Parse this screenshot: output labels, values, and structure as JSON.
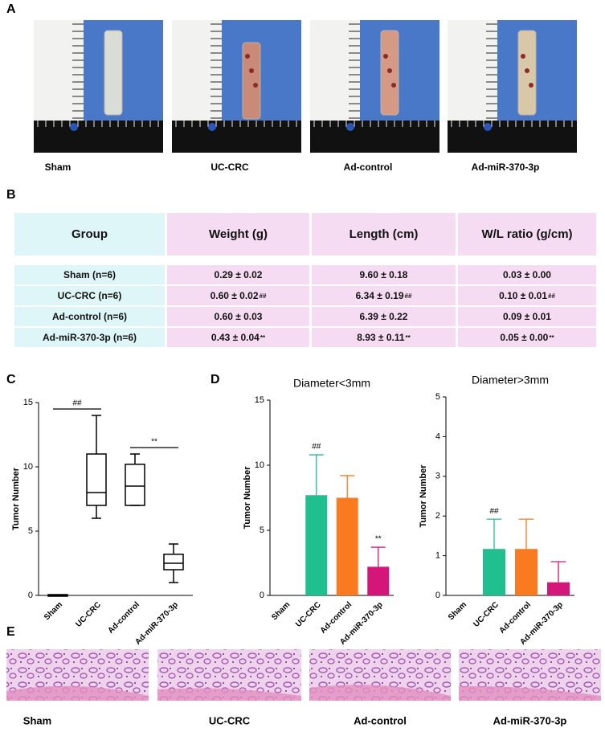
{
  "panel_labels": [
    "A",
    "B",
    "C",
    "D",
    "E"
  ],
  "panel_a": {
    "captions": [
      "Sham",
      "UC-CRC",
      "Ad-control",
      "Ad-miR-370-3p"
    ]
  },
  "table": {
    "header": [
      "Group",
      "Weight (g)",
      "Length (cm)",
      "W/L ratio (g/cm)"
    ],
    "rows": [
      [
        "Sham (n=6)",
        "0.29 ± 0.02",
        "9.60 ± 0.18",
        "0.03 ± 0.00"
      ],
      [
        "UC-CRC (n=6)",
        {
          "text": "0.60 ± 0.02",
          "sup": "##"
        },
        {
          "text": "6.34 ± 0.19",
          "sup": "##"
        },
        {
          "text": "0.10 ± 0.01",
          "sup": "##"
        }
      ],
      [
        "Ad-control (n=6)",
        "0.60 ± 0.03",
        "6.39 ± 0.22",
        "0.09 ± 0.01"
      ],
      [
        "Ad-miR-370-3p (n=6)",
        {
          "text": "0.43 ± 0.04",
          "sup": "**"
        },
        {
          "text": "8.93 ± 0.11",
          "sup": "**"
        },
        {
          "text": "0.05 ± 0.00",
          "sup": "**"
        }
      ]
    ]
  },
  "chart_data": [
    {
      "type": "box",
      "y_label": "Tumor Number",
      "categories": [
        "Sham",
        "UC-CRC",
        "Ad-control",
        "Ad-miR-370-3p"
      ],
      "stats": {
        "min": [
          0,
          6,
          7,
          1
        ],
        "q1": [
          0,
          7,
          7,
          2
        ],
        "median": [
          0,
          8,
          8.5,
          2.5
        ],
        "q3": [
          0,
          11,
          10.2,
          3.2
        ],
        "max": [
          0,
          14,
          11,
          4
        ]
      },
      "color": "#000000",
      "annotations": [
        {
          "text": "##",
          "from": "Sham",
          "to": "UC-CRC"
        },
        {
          "text": "**",
          "from": "Ad-control",
          "to": "Ad-miR-370-3p"
        }
      ],
      "ylim": [
        0,
        15
      ],
      "yticks": [
        0,
        5,
        10,
        15
      ]
    },
    {
      "type": "bar",
      "title": "Diameter<3mm",
      "y_label": "Tumor Number",
      "categories": [
        "Sham",
        "UC-CRC",
        "Ad-control",
        "Ad-miR-370-3p"
      ],
      "values": [
        0,
        7.7,
        7.5,
        2.2
      ],
      "errors": [
        0,
        3.1,
        1.7,
        1.5
      ],
      "colors": [
        "#1fbf8f",
        "#1fbf8f",
        "#f97a1f",
        "#d4157a"
      ],
      "annotations": [
        null,
        "##",
        null,
        "**"
      ],
      "ylim": [
        0,
        15
      ],
      "yticks": [
        0,
        5,
        10,
        15
      ]
    },
    {
      "type": "bar",
      "title": "Diameter>3mm",
      "y_label": "Tumor Number",
      "categories": [
        "Sham",
        "UC-CRC",
        "Ad-control",
        "Ad-miR-370-3p"
      ],
      "values": [
        0,
        1.17,
        1.17,
        0.33
      ],
      "errors": [
        0,
        0.75,
        0.75,
        0.52
      ],
      "colors": [
        "#1fbf8f",
        "#1fbf8f",
        "#f97a1f",
        "#d4157a"
      ],
      "annotations": [
        null,
        "##",
        null,
        null
      ],
      "ylim": [
        0,
        5
      ],
      "yticks": [
        0,
        1,
        2,
        3,
        4,
        5
      ]
    }
  ],
  "panel_e": {
    "captions": [
      "Sham",
      "UC-CRC",
      "Ad-control",
      "Ad-miR-370-3p"
    ]
  }
}
